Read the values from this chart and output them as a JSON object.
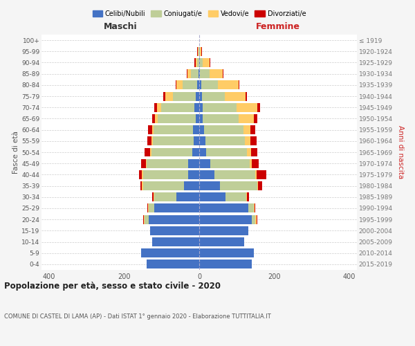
{
  "age_groups": [
    "0-4",
    "5-9",
    "10-14",
    "15-19",
    "20-24",
    "25-29",
    "30-34",
    "35-39",
    "40-44",
    "45-49",
    "50-54",
    "55-59",
    "60-64",
    "65-69",
    "70-74",
    "75-79",
    "80-84",
    "85-89",
    "90-94",
    "95-99",
    "100+"
  ],
  "birth_years": [
    "2015-2019",
    "2010-2014",
    "2005-2009",
    "2000-2004",
    "1995-1999",
    "1990-1994",
    "1985-1989",
    "1980-1984",
    "1975-1979",
    "1970-1974",
    "1965-1969",
    "1960-1964",
    "1955-1959",
    "1950-1954",
    "1945-1949",
    "1940-1944",
    "1935-1939",
    "1930-1934",
    "1925-1929",
    "1920-1924",
    "≤ 1919"
  ],
  "maschi": {
    "celibi": [
      140,
      155,
      125,
      130,
      135,
      120,
      60,
      40,
      30,
      30,
      18,
      14,
      16,
      10,
      12,
      10,
      5,
      2,
      0,
      0,
      0
    ],
    "coniugati": [
      0,
      0,
      0,
      0,
      10,
      15,
      60,
      110,
      120,
      110,
      110,
      110,
      105,
      100,
      90,
      60,
      40,
      20,
      5,
      2,
      0
    ],
    "vedovi": [
      0,
      0,
      0,
      0,
      2,
      2,
      2,
      2,
      2,
      2,
      2,
      4,
      5,
      8,
      10,
      20,
      15,
      10,
      5,
      2,
      0
    ],
    "divorziati": [
      0,
      0,
      0,
      0,
      2,
      2,
      3,
      5,
      8,
      12,
      16,
      10,
      10,
      8,
      8,
      5,
      2,
      2,
      2,
      2,
      0
    ]
  },
  "femmine": {
    "nubili": [
      140,
      145,
      120,
      130,
      140,
      130,
      70,
      55,
      40,
      30,
      18,
      16,
      12,
      10,
      10,
      8,
      5,
      2,
      2,
      0,
      0
    ],
    "coniugate": [
      0,
      0,
      0,
      0,
      10,
      15,
      55,
      100,
      110,
      105,
      110,
      105,
      105,
      95,
      90,
      60,
      45,
      25,
      8,
      2,
      0
    ],
    "vedove": [
      0,
      0,
      0,
      0,
      2,
      2,
      2,
      2,
      3,
      5,
      10,
      15,
      20,
      40,
      55,
      55,
      55,
      35,
      18,
      4,
      0
    ],
    "divorziate": [
      0,
      0,
      0,
      0,
      2,
      2,
      5,
      10,
      25,
      18,
      16,
      16,
      12,
      10,
      8,
      4,
      2,
      2,
      2,
      2,
      0
    ]
  },
  "colors": {
    "celibi": "#4472C4",
    "coniugati": "#BFCE98",
    "vedovi": "#FFCC66",
    "divorziati": "#CC0000"
  },
  "title_main": "Popolazione per età, sesso e stato civile - 2020",
  "title_sub": "COMUNE DI CASTEL DI LAMA (AP) - Dati ISTAT 1° gennaio 2020 - Elaborazione TUTTITALIA.IT",
  "xlabel_left": "Maschi",
  "xlabel_right": "Femmine",
  "ylabel_left": "Fasce di età",
  "ylabel_right": "Anni di nascita",
  "xlim": 420,
  "legend_labels": [
    "Celibi/Nubili",
    "Coniugati/e",
    "Vedovi/e",
    "Divorziati/e"
  ],
  "bg_color": "#f5f5f5",
  "plot_bg": "#ffffff"
}
